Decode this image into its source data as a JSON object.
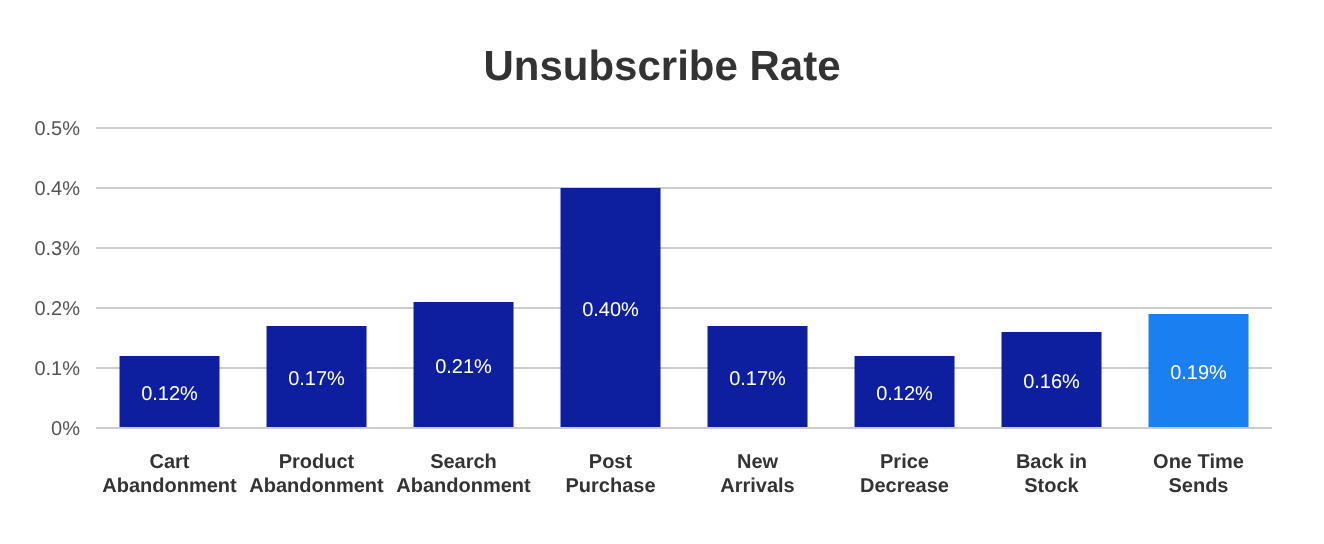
{
  "chart_data": {
    "type": "bar",
    "title": "Unsubscribe Rate",
    "categories": [
      "Cart Abandonment",
      "Product Abandonment",
      "Search Abandonment",
      "Post Purchase",
      "New Arrivals",
      "Price Decrease",
      "Back in Stock",
      "One Time Sends"
    ],
    "values": [
      0.12,
      0.17,
      0.21,
      0.4,
      0.17,
      0.12,
      0.16,
      0.19
    ],
    "colors": [
      "#0d1f9e",
      "#0d1f9e",
      "#0d1f9e",
      "#0d1f9e",
      "#0d1f9e",
      "#0d1f9e",
      "#0d1f9e",
      "#1a7ff0"
    ],
    "value_labels": [
      "0.12%",
      "0.17%",
      "0.21%",
      "0.40%",
      "0.17%",
      "0.12%",
      "0.16%",
      "0.19%"
    ],
    "ylim": [
      0,
      0.5
    ],
    "yticks": [
      {
        "value": 0,
        "label": "0%"
      },
      {
        "value": 0.1,
        "label": "0.1%"
      },
      {
        "value": 0.2,
        "label": "0.2%"
      },
      {
        "value": 0.3,
        "label": "0.3%"
      },
      {
        "value": 0.4,
        "label": "0.4%"
      },
      {
        "value": 0.5,
        "label": "0.5%"
      }
    ],
    "grid": "y"
  }
}
